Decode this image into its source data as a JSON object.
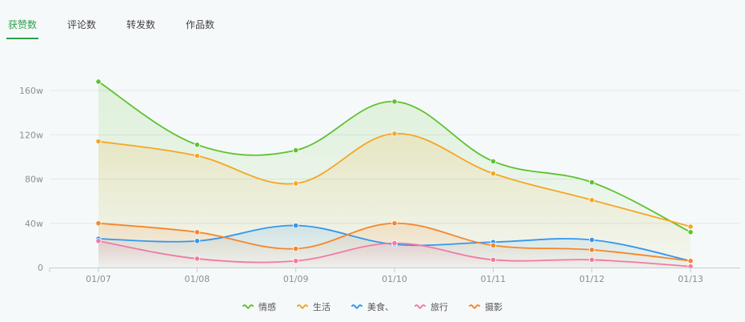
{
  "tabs": [
    {
      "label": "获赞数",
      "active": true
    },
    {
      "label": "评论数",
      "active": false
    },
    {
      "label": "转发数",
      "active": false
    },
    {
      "label": "作品数",
      "active": false
    }
  ],
  "chart_data": {
    "type": "area",
    "categories": [
      "01/07",
      "01/08",
      "01/09",
      "01/10",
      "01/11",
      "01/12",
      "01/13"
    ],
    "y_ticks": [
      "0",
      "40w",
      "80w",
      "120w",
      "160w"
    ],
    "ylim": [
      0,
      170
    ],
    "unit": "w",
    "grid": true,
    "legend_position": "bottom-center",
    "series": [
      {
        "name": "情感",
        "color": "#5ec22f",
        "values": [
          168,
          111,
          106,
          150,
          96,
          77,
          32
        ]
      },
      {
        "name": "生活",
        "color": "#f5a623",
        "values": [
          114,
          101,
          76,
          121,
          85,
          61,
          37
        ]
      },
      {
        "name": "美食、",
        "color": "#3397f0",
        "values": [
          26,
          24,
          38,
          21,
          23,
          25,
          6
        ]
      },
      {
        "name": "旅行",
        "color": "#f07aa8",
        "values": [
          24,
          8,
          6,
          22,
          7,
          7,
          1
        ]
      },
      {
        "name": "摄影",
        "color": "#f5862a",
        "values": [
          40,
          32,
          17,
          40,
          20,
          16,
          6
        ]
      }
    ]
  }
}
